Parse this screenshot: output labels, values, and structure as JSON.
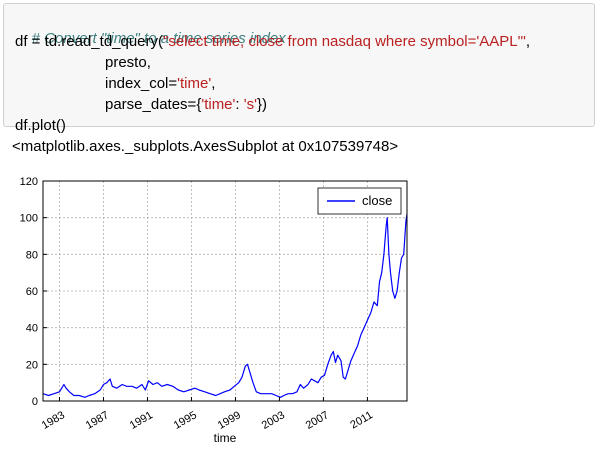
{
  "cell": {
    "comment": "# Convert \"time\" to a time series index",
    "line1_prefix": "df = td.read_td_query(",
    "line1_string": "\"select time, close from nasdaq where symbol='AAPL'\"",
    "line1_suffix": ",",
    "line2": "presto,",
    "line3_prefix": "index_col=",
    "line3_string": "'time'",
    "line3_suffix": ",",
    "line4_prefix": "parse_dates={",
    "line4_key": "'time'",
    "line4_colon": ": ",
    "line4_val": "'s'",
    "line4_suffix": "})",
    "line5": "df.plot()"
  },
  "output": {
    "repr": "<matplotlib.axes._subplots.AxesSubplot at 0x107539748>"
  },
  "chart_data": {
    "type": "line",
    "xlabel": "time",
    "ylabel": "",
    "ylim": [
      0,
      120
    ],
    "xlim": [
      1981.5,
      2014.6
    ],
    "yticks": [
      "0",
      "20",
      "40",
      "60",
      "80",
      "100",
      "120"
    ],
    "xticks": [
      "1983",
      "1987",
      "1991",
      "1995",
      "1999",
      "2003",
      "2007",
      "2011"
    ],
    "grid": true,
    "legend": "top-right",
    "series": [
      {
        "name": "close",
        "color": "#0000ff",
        "x": [
          1981.5,
          1982.0,
          1982.5,
          1983.0,
          1983.4,
          1983.6,
          1983.9,
          1984.3,
          1984.8,
          1985.3,
          1985.7,
          1986.2,
          1986.7,
          1987.0,
          1987.3,
          1987.6,
          1987.8,
          1988.2,
          1988.7,
          1989.1,
          1989.6,
          1990.0,
          1990.5,
          1990.8,
          1991.1,
          1991.5,
          1991.9,
          1992.3,
          1992.8,
          1993.3,
          1993.8,
          1994.3,
          1994.8,
          1995.3,
          1995.7,
          1996.2,
          1996.7,
          1997.2,
          1997.6,
          1998.0,
          1998.5,
          1998.9,
          1999.3,
          1999.6,
          1999.9,
          2000.1,
          2000.3,
          2000.6,
          2000.9,
          2001.3,
          2001.8,
          2002.3,
          2002.7,
          2003.1,
          2003.4,
          2003.8,
          2004.2,
          2004.6,
          2004.9,
          2005.2,
          2005.6,
          2005.9,
          2006.2,
          2006.5,
          2006.8,
          2007.1,
          2007.4,
          2007.7,
          2007.9,
          2008.1,
          2008.3,
          2008.6,
          2008.8,
          2009.0,
          2009.2,
          2009.5,
          2009.8,
          2010.1,
          2010.4,
          2010.7,
          2011.0,
          2011.3,
          2011.6,
          2011.9,
          2012.1,
          2012.3,
          2012.5,
          2012.7,
          2012.8,
          2012.95,
          2013.1,
          2013.3,
          2013.5,
          2013.7,
          2013.9,
          2014.1,
          2014.3,
          2014.5,
          2014.6
        ],
        "values": [
          4,
          3,
          4,
          5,
          9,
          7,
          5,
          3,
          3,
          2,
          3,
          4,
          6,
          9,
          10,
          12,
          8,
          7,
          9,
          8,
          8,
          7,
          9,
          6,
          11,
          9,
          10,
          8,
          9,
          8,
          6,
          5,
          6,
          7,
          6,
          5,
          4,
          3,
          4,
          5,
          6,
          8,
          10,
          13,
          19,
          20,
          16,
          10,
          5,
          4,
          4,
          4,
          3,
          2,
          3,
          4,
          4,
          5,
          9,
          7,
          9,
          12,
          11,
          10,
          13,
          14,
          20,
          25,
          27,
          21,
          25,
          22,
          13,
          12,
          16,
          22,
          26,
          30,
          36,
          40,
          44,
          48,
          54,
          52,
          65,
          70,
          80,
          95,
          100,
          80,
          70,
          60,
          56,
          60,
          70,
          78,
          80,
          98,
          102
        ]
      }
    ]
  }
}
